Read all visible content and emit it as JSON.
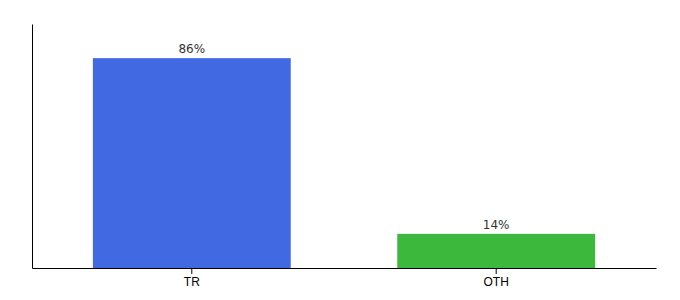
{
  "chart_data": {
    "type": "bar",
    "categories": [
      "TR",
      "OTH"
    ],
    "values": [
      86,
      14
    ],
    "value_labels": [
      "86%",
      "14%"
    ],
    "colors": [
      "#4169e1",
      "#3cb83c"
    ],
    "ylim": [
      0,
      100
    ],
    "yticks": [],
    "data_labels": true,
    "tick_labels": "x"
  }
}
